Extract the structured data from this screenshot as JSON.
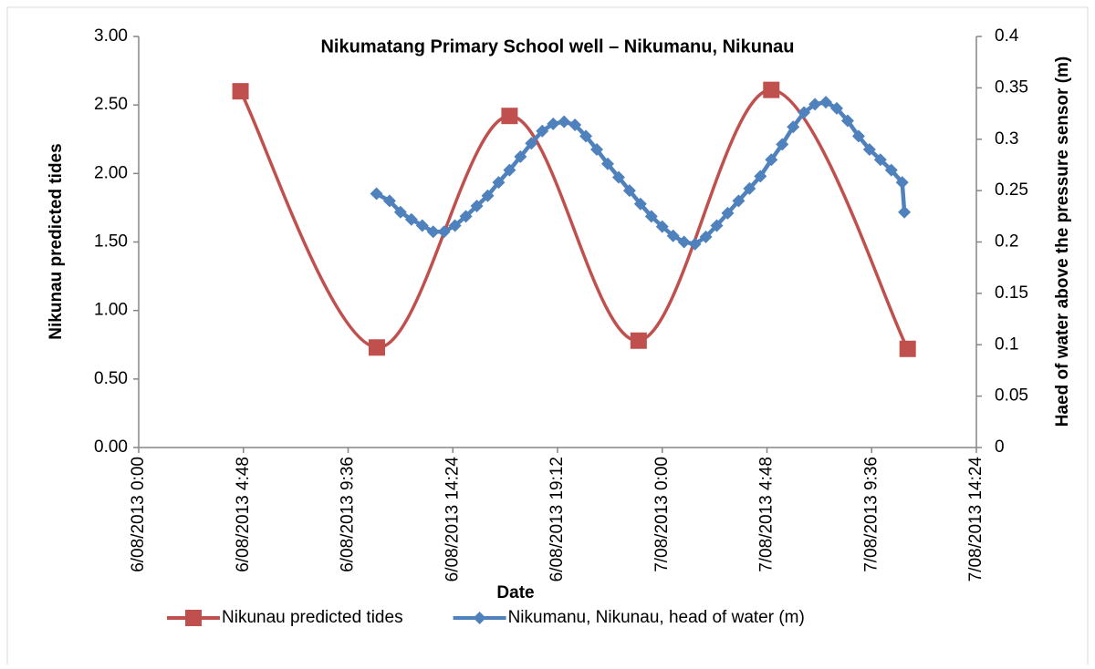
{
  "chart_data": {
    "type": "line",
    "title": "Nikumatang Primary School well – Nikumanu, Nikunau",
    "xlabel": "Date",
    "ylabel": "Nikunau predicted tides",
    "y2label": "Haed of water above the pressure sensor (m)",
    "xlim": [
      "2013-08-06T00:00",
      "2013-08-07T14:24"
    ],
    "xticks": [
      {
        "value": "2013-08-06T00:00",
        "label": "6/08/2013 0:00"
      },
      {
        "value": "2013-08-06T04:48",
        "label": "6/08/2013 4:48"
      },
      {
        "value": "2013-08-06T09:36",
        "label": "6/08/2013 9:36"
      },
      {
        "value": "2013-08-06T14:24",
        "label": "6/08/2013 14:24"
      },
      {
        "value": "2013-08-06T19:12",
        "label": "6/08/2013 19:12"
      },
      {
        "value": "2013-08-07T00:00",
        "label": "7/08/2013 0:00"
      },
      {
        "value": "2013-08-07T04:48",
        "label": "7/08/2013 4:48"
      },
      {
        "value": "2013-08-07T09:36",
        "label": "7/08/2013 9:36"
      },
      {
        "value": "2013-08-07T14:24",
        "label": "7/08/2013 14:24"
      }
    ],
    "ylim": [
      0,
      3
    ],
    "yticks": [
      {
        "value": 0,
        "label": "0.00"
      },
      {
        "value": 0.5,
        "label": "0.50"
      },
      {
        "value": 1,
        "label": "1.00"
      },
      {
        "value": 1.5,
        "label": "1.50"
      },
      {
        "value": 2,
        "label": "2.00"
      },
      {
        "value": 2.5,
        "label": "2.50"
      },
      {
        "value": 3,
        "label": "3.00"
      }
    ],
    "y2lim": [
      0,
      0.4
    ],
    "y2ticks": [
      0,
      0.05,
      0.1,
      0.15,
      0.2,
      0.25,
      0.3,
      0.35,
      0.4
    ],
    "legend": "bottom",
    "series": [
      {
        "name": "Nikunau predicted tides",
        "color": "#c0504d",
        "marker": "square",
        "smooth": true,
        "x": [
          "2013-08-06T04:40",
          "2013-08-06T10:55",
          "2013-08-06T17:00",
          "2013-08-06T22:55",
          "2013-08-07T05:00",
          "2013-08-07T11:15"
        ],
        "values": [
          2.6,
          0.73,
          2.42,
          0.78,
          2.61,
          0.72
        ]
      },
      {
        "name": "Nikumanu, Nikunau, head of water (m)",
        "color": "#4f81bd",
        "marker": "diamond",
        "smooth": false,
        "axis": "y2",
        "x": [
          "2013-08-06T10:54",
          "2013-08-06T11:30",
          "2013-08-06T12:00",
          "2013-08-06T12:30",
          "2013-08-06T13:00",
          "2013-08-06T13:30",
          "2013-08-06T14:00",
          "2013-08-06T14:30",
          "2013-08-06T15:00",
          "2013-08-06T15:30",
          "2013-08-06T16:00",
          "2013-08-06T16:30",
          "2013-08-06T17:00",
          "2013-08-06T17:30",
          "2013-08-06T18:00",
          "2013-08-06T18:30",
          "2013-08-06T19:00",
          "2013-08-06T19:30",
          "2013-08-06T20:00",
          "2013-08-06T20:30",
          "2013-08-06T21:00",
          "2013-08-06T21:30",
          "2013-08-06T22:00",
          "2013-08-06T22:30",
          "2013-08-06T23:00",
          "2013-08-06T23:30",
          "2013-08-07T00:00",
          "2013-08-07T00:30",
          "2013-08-07T01:00",
          "2013-08-07T01:30",
          "2013-08-07T02:00",
          "2013-08-07T02:30",
          "2013-08-07T03:00",
          "2013-08-07T03:30",
          "2013-08-07T04:00",
          "2013-08-07T04:30",
          "2013-08-07T05:00",
          "2013-08-07T05:30",
          "2013-08-07T06:00",
          "2013-08-07T06:30",
          "2013-08-07T07:00",
          "2013-08-07T07:30",
          "2013-08-07T08:00",
          "2013-08-07T08:30",
          "2013-08-07T09:00",
          "2013-08-07T09:30",
          "2013-08-07T10:00",
          "2013-08-07T10:30",
          "2013-08-07T11:00",
          "2013-08-07T11:06"
        ],
        "values": [
          0.247,
          0.24,
          0.229,
          0.222,
          0.216,
          0.21,
          0.21,
          0.216,
          0.225,
          0.235,
          0.245,
          0.258,
          0.27,
          0.283,
          0.296,
          0.308,
          0.315,
          0.317,
          0.314,
          0.303,
          0.29,
          0.276,
          0.263,
          0.25,
          0.237,
          0.225,
          0.215,
          0.206,
          0.2,
          0.198,
          0.205,
          0.216,
          0.228,
          0.24,
          0.252,
          0.264,
          0.28,
          0.295,
          0.312,
          0.326,
          0.334,
          0.336,
          0.33,
          0.318,
          0.303,
          0.29,
          0.28,
          0.27,
          0.258,
          0.229
        ]
      }
    ]
  }
}
